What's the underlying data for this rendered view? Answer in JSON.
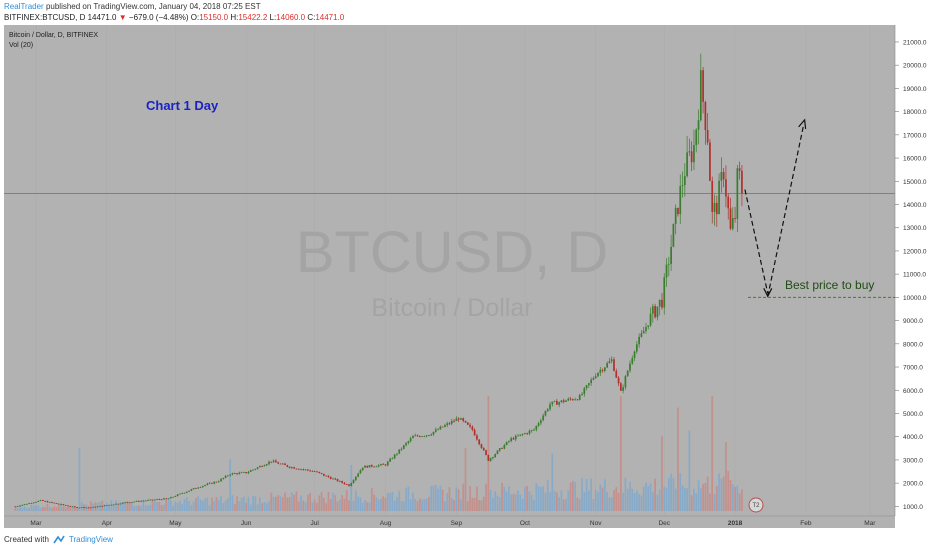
{
  "header": {
    "author": "RealTrader",
    "published_text": "published on TradingView.com, January 04, 2018 07:25 EST",
    "symbol_line": "BITFINEX:BTCUSD, D",
    "last_price": "14471.0",
    "change_arrow": "▼",
    "change": "−679.0 (−4.48%)",
    "open_label": "O:",
    "open": "15150.0",
    "high_label": "H:",
    "high": "15422.2",
    "low_label": "L:",
    "low": "14060.0",
    "close_label": "C:",
    "close": "14471.0"
  },
  "legend": {
    "series_title": "Bitcoin / Dollar, D, BITFINEX",
    "volume_label": "Vol (20)"
  },
  "annotations": {
    "chart_title": "Chart 1 Day",
    "buy_label": "Best price to buy",
    "watermark_symbol": "BTCUSD, D",
    "watermark_name": "Bitcoin / Dollar",
    "badge_text": "T2"
  },
  "footer": {
    "created_with": "Created with",
    "brand": "TradingView"
  },
  "colors": {
    "up": "#3a7d2e",
    "down": "#b0302b",
    "vol_up": "#7fa8cc",
    "vol_down": "#c58a85",
    "price_line": "#d9302c",
    "target_line": "#3f7f1f",
    "title_blue": "#1a22c8"
  },
  "chart_data": {
    "type": "candlestick",
    "title": "Bitcoin / Dollar, D, BITFINEX",
    "ylim": [
      800,
      21300
    ],
    "y_ticks": [
      1000,
      2000,
      3000,
      4000,
      5000,
      6000,
      7000,
      8000,
      9000,
      10000,
      11000,
      12000,
      13000,
      14000,
      15000,
      16000,
      17000,
      18000,
      19000,
      20000,
      21000
    ],
    "y_tick_labels": [
      "1000.0",
      "2000.0",
      "3000.0",
      "4000.0",
      "5000.0",
      "6000.0",
      "7000.0",
      "8000.0",
      "9000.0",
      "10000.0",
      "11000.0",
      "12000.0",
      "13000.0",
      "14000.0",
      "15000.0",
      "16000.0",
      "17000.0",
      "18000.0",
      "19000.0",
      "20000.0",
      "21000.0"
    ],
    "x_labels": [
      "Mar",
      "Apr",
      "May",
      "Jun",
      "Jul",
      "Aug",
      "Sep",
      "Oct",
      "Nov",
      "Dec",
      "2018",
      "Feb",
      "Mar"
    ],
    "x_label_dates": [
      "2017-03-01",
      "2017-04-01",
      "2017-05-01",
      "2017-06-01",
      "2017-07-01",
      "2017-08-01",
      "2017-09-01",
      "2017-10-01",
      "2017-11-01",
      "2017-12-01",
      "2018-01-01",
      "2018-02-01",
      "2018-03-01"
    ],
    "first_date": "2017-02-20",
    "last_date": "2018-01-04",
    "current_price": 14471.0,
    "current_price_label": "14471.0",
    "target_price": 10002.5,
    "target_price_label": "10002.5",
    "close_anchors": [
      [
        "2017-02-20",
        1000
      ],
      [
        "2017-03-03",
        1250
      ],
      [
        "2017-03-18",
        960
      ],
      [
        "2017-03-25",
        950
      ],
      [
        "2017-04-10",
        1180
      ],
      [
        "2017-04-28",
        1340
      ],
      [
        "2017-05-10",
        1800
      ],
      [
        "2017-05-20",
        2100
      ],
      [
        "2017-05-25",
        2400
      ],
      [
        "2017-06-01",
        2450
      ],
      [
        "2017-06-12",
        2950
      ],
      [
        "2017-06-20",
        2700
      ],
      [
        "2017-07-01",
        2500
      ],
      [
        "2017-07-16",
        1900
      ],
      [
        "2017-07-22",
        2700
      ],
      [
        "2017-08-01",
        2800
      ],
      [
        "2017-08-13",
        4000
      ],
      [
        "2017-08-20",
        4100
      ],
      [
        "2017-09-02",
        4800
      ],
      [
        "2017-09-08",
        4300
      ],
      [
        "2017-09-15",
        3000
      ],
      [
        "2017-09-25",
        3900
      ],
      [
        "2017-10-05",
        4300
      ],
      [
        "2017-10-12",
        5400
      ],
      [
        "2017-10-25",
        5700
      ],
      [
        "2017-11-01",
        6700
      ],
      [
        "2017-11-08",
        7300
      ],
      [
        "2017-11-12",
        5900
      ],
      [
        "2017-11-18",
        7800
      ],
      [
        "2017-11-26",
        9300
      ],
      [
        "2017-11-30",
        9900
      ],
      [
        "2017-12-07",
        14000
      ],
      [
        "2017-12-10",
        15500
      ],
      [
        "2017-12-14",
        16500
      ],
      [
        "2017-12-17",
        19200
      ],
      [
        "2017-12-20",
        17000
      ],
      [
        "2017-12-22",
        13500
      ],
      [
        "2017-12-24",
        14000
      ],
      [
        "2017-12-27",
        15500
      ],
      [
        "2017-12-30",
        12800
      ],
      [
        "2018-01-01",
        13500
      ],
      [
        "2018-01-02",
        15100
      ],
      [
        "2018-01-03",
        15150
      ],
      [
        "2018-01-04",
        14471
      ]
    ],
    "volume_profile": "relative volume bars along the bottom of the pane; largest spikes around mid-September, mid-November and December 2017",
    "projection": {
      "from": [
        "2018-01-04",
        14471
      ],
      "low": [
        "2018-01-14",
        10002.5
      ],
      "to": [
        "2018-01-31",
        17600
      ]
    }
  }
}
